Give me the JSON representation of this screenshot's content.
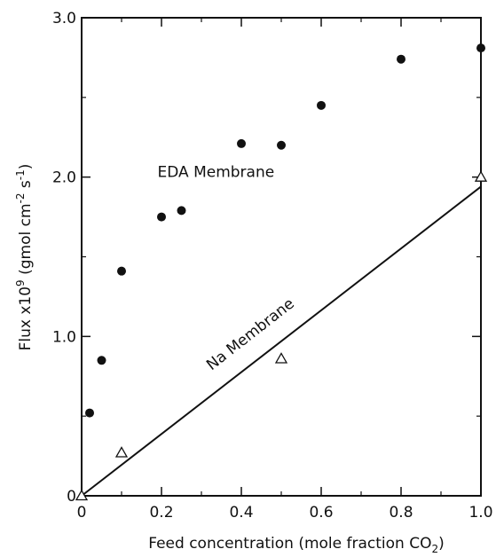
{
  "chart_data": {
    "type": "scatter",
    "xlabel": "Feed concentration (mole fraction CO",
    "xlabel_sub": "2",
    "xlabel_close": ")",
    "ylabel_main": "Flux x10",
    "ylabel_exp": "9",
    "ylabel_units_a": " (gmol cm",
    "ylabel_units_exp1": "-2",
    "ylabel_units_b": " s",
    "ylabel_units_exp2": "-1",
    "ylabel_units_c": ")",
    "xlim": [
      0,
      1.0
    ],
    "ylim": [
      0,
      3.0
    ],
    "x_ticks": [
      "0",
      "0.2",
      "0.4",
      "0.6",
      "0.8",
      "1.0"
    ],
    "x_tick_values": [
      0,
      0.2,
      0.4,
      0.6,
      0.8,
      1.0
    ],
    "y_ticks": [
      "0",
      "1.0",
      "2.0",
      "3.0"
    ],
    "y_tick_values": [
      0,
      1.0,
      2.0,
      3.0
    ],
    "series": [
      {
        "name": "EDA Membrane",
        "marker": "filled-circle",
        "x": [
          0.02,
          0.05,
          0.1,
          0.2,
          0.25,
          0.4,
          0.5,
          0.6,
          0.8,
          1.0
        ],
        "y": [
          0.52,
          0.85,
          1.41,
          1.75,
          1.79,
          2.21,
          2.2,
          2.45,
          2.74,
          2.81
        ]
      },
      {
        "name": "Na Membrane",
        "marker": "open-triangle",
        "x": [
          0,
          0.1,
          0.5,
          1.0
        ],
        "y": [
          0,
          0.27,
          0.86,
          2.0
        ],
        "fit_line": {
          "x": [
            0,
            1.0
          ],
          "y": [
            0,
            1.94
          ]
        }
      }
    ],
    "annotations": [
      {
        "text": "EDA Membrane",
        "x": 0.19,
        "y": 2.0
      },
      {
        "text": "Na Membrane",
        "x": 0.43,
        "y": 0.99,
        "angle_deg": -38
      }
    ],
    "grid": false,
    "colors": {
      "ink": "#111111",
      "background": "#ffffff"
    }
  }
}
